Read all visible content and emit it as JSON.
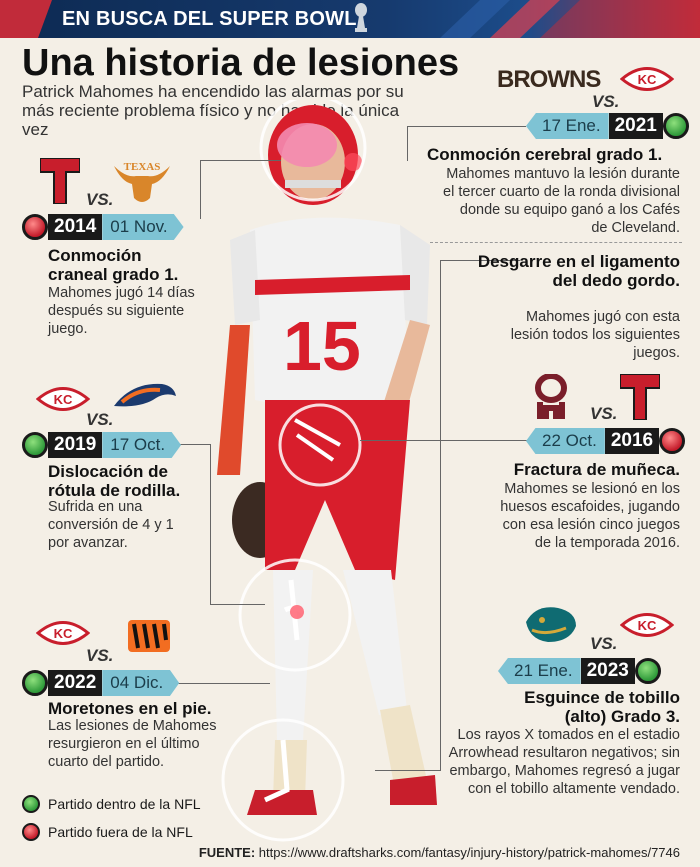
{
  "header": {
    "title": "EN BUSCA DEL SUPER BOWL"
  },
  "title": "Una historia de lesiones",
  "subtitle": "Patrick Mahomes ha encendido las alarmas por su más reciente problema físico y no ha sido la única vez",
  "vs_label": "VS.",
  "colors": {
    "green": "#2f9a3a",
    "red": "#c41c2b",
    "date_tag": "#7ec3d4",
    "year_tag": "#1a1a1a"
  },
  "player": {
    "jersey_number": "15"
  },
  "injuries": [
    {
      "year": "2021",
      "date": "17 Ene.",
      "status": "green",
      "team_a": "BROWNS",
      "team_a_icon": "browns-wordmark-icon",
      "team_b_icon": "chiefs-logo-icon",
      "title": "Conmoción cerebral grado 1.",
      "description": "Mahomes mantuvo la lesión durante el tercer cuarto de la ronda divisional donde su equipo ganó a los Cafés de Cleveland."
    },
    {
      "year": "2014",
      "date": "01 Nov.",
      "status": "red",
      "team_a_icon": "texas-tech-logo-icon",
      "team_b": "TEXAS",
      "team_b_icon": "texas-longhorns-logo-icon",
      "title": "Conmoción craneal grado 1.",
      "description": "Mahomes jugó 14 días después su siguiente juego."
    },
    {
      "year": "",
      "date": "",
      "status": "",
      "title": "Desgarre en el ligamento del dedo gordo.",
      "description": "Mahomes jugó con esta lesión todos los siguientes juegos."
    },
    {
      "year": "2019",
      "date": "17 Oct.",
      "status": "green",
      "team_a_icon": "chiefs-logo-icon",
      "team_b_icon": "broncos-logo-icon",
      "title": "Dislocación de rótula de rodilla.",
      "description": "Sufrida en una conversión de 4 y 1 por avanzar."
    },
    {
      "year": "2016",
      "date": "22 Oct.",
      "status": "red",
      "team_a_icon": "oklahoma-logo-icon",
      "team_b_icon": "texas-tech-logo-icon",
      "title": "Fractura de muñeca.",
      "description": "Mahomes se lesionó en los huesos escafoides, jugando con esa lesión cinco juegos de la temporada 2016."
    },
    {
      "year": "2022",
      "date": "04 Dic.",
      "status": "green",
      "team_a_icon": "chiefs-logo-icon",
      "team_b_icon": "bengals-logo-icon",
      "title": "Moretones en el pie.",
      "description": "Las lesiones de Mahomes resurgieron en el último cuarto del partido."
    },
    {
      "year": "2023",
      "date": "21 Ene.",
      "status": "green",
      "team_a_icon": "jaguars-logo-icon",
      "team_b_icon": "chiefs-logo-icon",
      "title": "Esguince de tobillo (alto) Grado 3.",
      "description": "Los rayos X tomados en el estadio Arrowhead resultaron negativos; sin embargo, Mahomes regresó a jugar con el tobillo altamente vendado."
    }
  ],
  "legend": [
    {
      "label": "Partido dentro de la NFL",
      "status": "green"
    },
    {
      "label": "Partido fuera de la NFL",
      "status": "red"
    }
  ],
  "footer": {
    "label": "FUENTE:",
    "url": "https://www.draftsharks.com/fantasy/injury-history/patrick-mahomes/7746"
  }
}
